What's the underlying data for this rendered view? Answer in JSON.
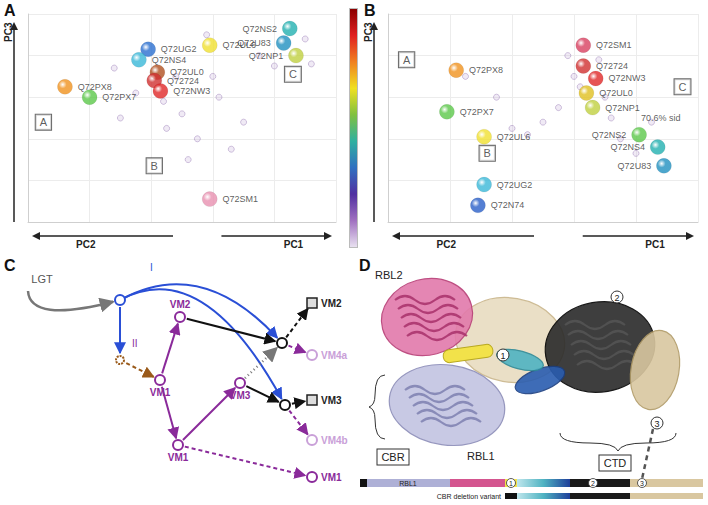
{
  "chart_data": [
    {
      "panel": "A",
      "type": "scatter",
      "axis_labels": [
        "PC1",
        "PC2",
        "PC3"
      ],
      "xlim": [
        0,
        100
      ],
      "ylim": [
        0,
        100
      ],
      "xticks": [
        0,
        20,
        40,
        60,
        80,
        100
      ],
      "yticks": [
        0,
        20,
        40,
        60,
        80,
        100
      ],
      "grid": true,
      "tick_labels": false,
      "regions": [
        {
          "label": "A",
          "x": 5,
          "y": 48
        },
        {
          "label": "B",
          "x": 41,
          "y": 27
        },
        {
          "label": "C",
          "x": 86,
          "y": 71
        }
      ],
      "points": [
        {
          "name": "Q72PX8",
          "color": "#f0921e",
          "x": 12,
          "y": 65
        },
        {
          "name": "Q72PX7",
          "color": "#5cc84a",
          "x": 20,
          "y": 60
        },
        {
          "name": "Q72UG2",
          "color": "#2a6fd0",
          "x": 39,
          "y": 83
        },
        {
          "name": "Q72NS4",
          "color": "#3ab8d8",
          "x": 36,
          "y": 78
        },
        {
          "name": "Q72UL6",
          "color": "#f0e030",
          "x": 59,
          "y": 85
        },
        {
          "name": "Q72NS2",
          "color": "#22b0b0",
          "x": 85,
          "y": 93
        },
        {
          "name": "Q72U83",
          "color": "#2090c0",
          "x": 83,
          "y": 86
        },
        {
          "name": "Q72NP1",
          "color": "#c0d040",
          "x": 87,
          "y": 80
        },
        {
          "name": "Q72UL0",
          "color": "#b05020",
          "x": 42,
          "y": 72
        },
        {
          "name": "Q72724",
          "color": "#d03030",
          "x": 41,
          "y": 68
        },
        {
          "name": "Q72NW3",
          "color": "#e02828",
          "x": 43,
          "y": 63
        },
        {
          "name": "Q72SM1",
          "color": "#e890b0",
          "x": 59,
          "y": 11
        }
      ],
      "background": {
        "x": [
          45,
          50,
          55,
          62,
          66,
          70,
          52,
          48,
          30,
          28,
          75,
          80,
          90,
          92,
          58,
          60,
          35,
          44
        ],
        "y": [
          45,
          52,
          40,
          60,
          35,
          48,
          30,
          70,
          50,
          74,
          80,
          75,
          88,
          76,
          90,
          70,
          62,
          58
        ]
      }
    },
    {
      "panel": "B",
      "type": "scatter",
      "axis_labels": [
        "PC1",
        "PC2",
        "PC3"
      ],
      "xlim": [
        0,
        100
      ],
      "ylim": [
        0,
        100
      ],
      "xticks": [
        0,
        20,
        40,
        60,
        80,
        100
      ],
      "yticks": [
        0,
        20,
        40,
        60,
        80,
        100
      ],
      "grid": true,
      "tick_labels": false,
      "regions": [
        {
          "label": "A",
          "x": 6,
          "y": 78
        },
        {
          "label": "B",
          "x": 32,
          "y": 33
        },
        {
          "label": "C",
          "x": 95,
          "y": 65
        }
      ],
      "annotations": [
        {
          "text": "70.6% sid",
          "x": 88,
          "y": 50
        }
      ],
      "points": [
        {
          "name": "Q72PX8",
          "color": "#f0921e",
          "x": 22,
          "y": 73
        },
        {
          "name": "Q72PX7",
          "color": "#5cc84a",
          "x": 19,
          "y": 53
        },
        {
          "name": "Q72SM1",
          "color": "#d84060",
          "x": 63,
          "y": 85
        },
        {
          "name": "Q72724",
          "color": "#d03030",
          "x": 63,
          "y": 75
        },
        {
          "name": "Q72NW3",
          "color": "#e02828",
          "x": 67,
          "y": 69
        },
        {
          "name": "Q72UL0",
          "color": "#e0c020",
          "x": 64,
          "y": 62
        },
        {
          "name": "Q72NP1",
          "color": "#c0d040",
          "x": 66,
          "y": 55
        },
        {
          "name": "Q72UL6",
          "color": "#f0e030",
          "x": 31,
          "y": 41
        },
        {
          "name": "Q72NS2",
          "color": "#5cc84a",
          "x": 81,
          "y": 42
        },
        {
          "name": "Q72NS4",
          "color": "#22b0b0",
          "x": 87,
          "y": 36
        },
        {
          "name": "Q72U83",
          "color": "#2090c0",
          "x": 89,
          "y": 27
        },
        {
          "name": "Q72UG2",
          "color": "#3ab8d8",
          "x": 31,
          "y": 18
        },
        {
          "name": "Q72N74",
          "color": "#2a5fc8",
          "x": 29,
          "y": 8
        }
      ],
      "background": {
        "x": [
          58,
          60,
          62,
          70,
          72,
          40,
          45,
          50,
          55,
          75,
          80,
          85,
          68,
          25,
          35
        ],
        "y": [
          80,
          70,
          65,
          60,
          50,
          45,
          42,
          48,
          55,
          40,
          33,
          48,
          78,
          70,
          60
        ]
      }
    }
  ],
  "diagram": {
    "panel": "C",
    "branches": [
      "I",
      "II"
    ],
    "nodes": [
      {
        "label": "LGT",
        "color": "grey"
      },
      {
        "color": "blue"
      },
      {
        "color": "brown"
      },
      {
        "label": "VM1",
        "color": "purple"
      },
      {
        "label": "VM2",
        "color": "purple"
      },
      {
        "label": "VM1",
        "color": "purple"
      },
      {
        "label": "VM3",
        "color": "purple"
      },
      {
        "color": "black"
      },
      {
        "color": "black"
      },
      {
        "label": "VM2",
        "color": "square"
      },
      {
        "label": "VM4a",
        "color": "faded"
      },
      {
        "label": "VM3",
        "color": "square"
      },
      {
        "label": "VM4b",
        "color": "faded"
      },
      {
        "label": "VM1",
        "color": "purple"
      }
    ],
    "edges": [
      {
        "from": 0,
        "to": 1,
        "color": "grey",
        "line_style": "solid"
      },
      {
        "from": 1,
        "to": 7,
        "color": "blue",
        "line_style": "solid"
      },
      {
        "from": 1,
        "to": 8,
        "color": "blue",
        "line_style": "solid"
      },
      {
        "from": 1,
        "to": 2,
        "color": "blue",
        "line_style": "solid"
      },
      {
        "from": 2,
        "to": 3,
        "color": "brown",
        "line_style": "dashed"
      },
      {
        "from": 3,
        "to": 4,
        "color": "purple",
        "line_style": "solid"
      },
      {
        "from": 3,
        "to": 5,
        "color": "purple",
        "line_style": "solid"
      },
      {
        "from": 5,
        "to": 6,
        "color": "purple",
        "line_style": "solid"
      },
      {
        "from": 5,
        "to": 13,
        "color": "purple",
        "line_style": "dashed"
      },
      {
        "from": 4,
        "to": 7,
        "color": "black",
        "line_style": "solid"
      },
      {
        "from": 6,
        "to": 8,
        "color": "black",
        "line_style": "solid"
      },
      {
        "from": 6,
        "to": 7,
        "color": "grey",
        "line_style": "dotted"
      },
      {
        "from": 7,
        "to": 9,
        "color": "black",
        "line_style": "dashed"
      },
      {
        "from": 7,
        "to": 10,
        "color": "purple",
        "line_style": "dashed"
      },
      {
        "from": 8,
        "to": 11,
        "color": "black",
        "line_style": "dashed"
      },
      {
        "from": 8,
        "to": 12,
        "color": "purple",
        "line_style": "dashed"
      }
    ]
  },
  "structure": {
    "panel": "D",
    "domains": [
      "RBL2",
      "RBL1"
    ],
    "boxes": [
      "CBR",
      "CTD"
    ],
    "markers": [
      1,
      2,
      3
    ],
    "bar_label": "RBL1",
    "variant_label": "CBR deletion variant"
  }
}
